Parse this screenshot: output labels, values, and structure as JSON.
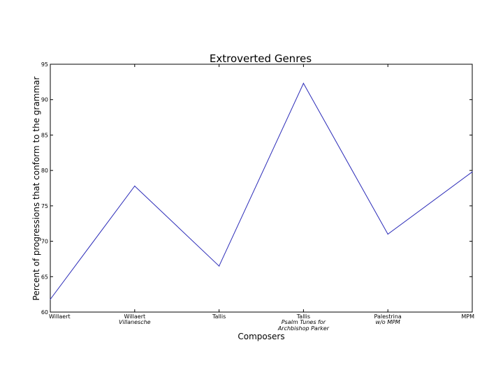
{
  "chart_data": {
    "type": "line",
    "title": "Extroverted Genres",
    "xlabel": "Composers",
    "ylabel": "Percent of progressions that conform to the grammar",
    "ylim": [
      60,
      95
    ],
    "yticks": [
      60,
      65,
      70,
      75,
      80,
      85,
      90,
      95
    ],
    "categories": [
      {
        "name": "Willaert",
        "sub": ""
      },
      {
        "name": "Willaert",
        "sub": "Villanesche"
      },
      {
        "name": "Tallis",
        "sub": ""
      },
      {
        "name": "Tallis",
        "sub": "Psalm Tunes for Archbishop Parker"
      },
      {
        "name": "Palestrina",
        "sub": "w/o MPM"
      },
      {
        "name": "MPM",
        "sub": ""
      }
    ],
    "series": [
      {
        "values": [
          61.8,
          77.8,
          66.5,
          92.3,
          71.0,
          79.8
        ],
        "color": "#2b2bb8"
      }
    ],
    "grid": false
  }
}
